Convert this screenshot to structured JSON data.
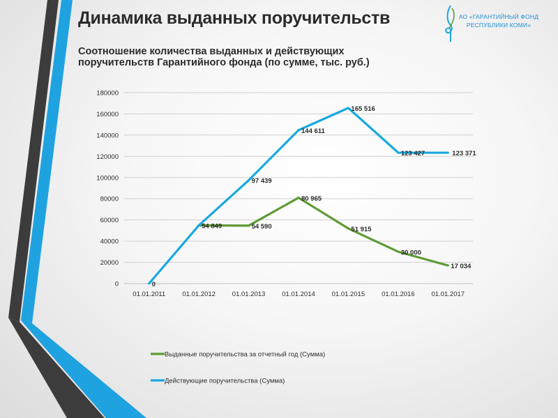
{
  "slide": {
    "title": "Динамика выданных поручительств",
    "logo_line1": "АО «ГАРАНТИЙНЫЙ  ФОНД",
    "logo_line2": "РЕСПУБЛИКИ  КОМИ»",
    "logo_icon": "music-clef-icon"
  },
  "colors": {
    "accent_blue": "#17a9e1",
    "accent_green": "#5f9a36",
    "stripe_dark": "#3c3c3c",
    "logo_blue": "#1f8fd0"
  },
  "chart_data": {
    "type": "line",
    "title_line1": "Соотношение количества выданных и действующих",
    "title_line2": "поручительств Гарантийного фонда (по сумме, тыс. руб.)",
    "categories": [
      "01.01.2011",
      "01.01.2012",
      "01.01.2013",
      "01.01.2014",
      "01.01.2015",
      "01.01.2016",
      "01.01.2017"
    ],
    "ylim": [
      0,
      180000
    ],
    "yticks": [
      0,
      20000,
      40000,
      60000,
      80000,
      100000,
      120000,
      140000,
      160000,
      180000
    ],
    "grid": true,
    "legend_position": "bottom",
    "series": [
      {
        "name": "Выданные поручительства за отчетный год (Сумма)",
        "color": "#5f9a36",
        "values": [
          null,
          54849,
          54590,
          80965,
          51915,
          30000,
          17034
        ],
        "labels": [
          null,
          "54 849",
          "54 590",
          "80 965",
          "51 915",
          "30 000",
          "17 034"
        ]
      },
      {
        "name": "Действующие поручительства (Сумма)",
        "color": "#17a9e1",
        "values": [
          0,
          54849,
          97439,
          144611,
          165516,
          123427,
          123371
        ],
        "labels": [
          "0",
          null,
          "97 439",
          "144 611",
          "165 516",
          "123 427",
          "123 371"
        ]
      }
    ]
  }
}
